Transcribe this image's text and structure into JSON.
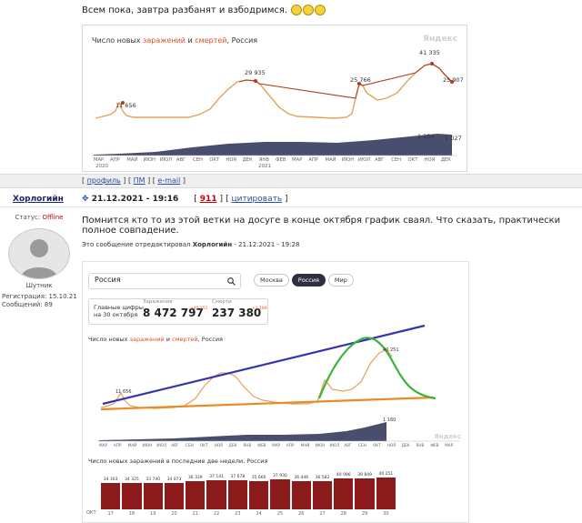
{
  "post1": {
    "text": "Всем пока, завтра разбанят и взбодримся.",
    "chart": {
      "title_prefix": "Число новых ",
      "title_cases": "заражений",
      "title_and": " и ",
      "title_deaths": "смертей",
      "title_suffix": ", Россия",
      "watermark": "Яндекс",
      "labels": [
        "11 656",
        "29 935",
        "25 766",
        "41 335",
        "25 907",
        "1 254",
        "1 027"
      ],
      "months": [
        "МАР",
        "АПР",
        "МАЙ",
        "ИЮН",
        "ИЮЛ",
        "АВГ",
        "СЕН",
        "ОКТ",
        "НОЯ",
        "ДЕК",
        "ЯНВ",
        "ФЕВ",
        "МАР",
        "АПР",
        "МАЙ",
        "ИЮН",
        "ИЮЛ",
        "АВГ",
        "СЕН",
        "ОКТ",
        "НОЯ",
        "ДЕК"
      ],
      "year1": "2020",
      "year2": "2021"
    },
    "links": {
      "profile": "профиль",
      "pm": "ПМ",
      "email": "e-mail"
    }
  },
  "post2": {
    "username": "Хорлогийн",
    "status_label": "Статус:",
    "status_value": "Offline",
    "rank": "Шутник",
    "reg_label": "Регистрация: 15.10.21",
    "msgs_label": "Сообщений: 89",
    "datetime": "21.12.2021 - 19:16",
    "post_number": "911",
    "quote_label": "цитировать",
    "text": "Помнится кто то из этой ветки на досуге в конце октября график сваял. Что сказать, практически полное совпадение.",
    "edited_prefix": "Это сообщение отредактировал",
    "edited_user": "Хорлогийн",
    "edited_suffix": "- 21.12.2021 - 19:28",
    "image": {
      "search_value": "Россия",
      "pills": [
        "Москва",
        "Россия",
        "Мир"
      ],
      "main_figs_label_1": "Главные цифры",
      "main_figs_label_2": "на 30 октября",
      "cases_label": "Заражения",
      "cases_value": "8 472 797",
      "cases_delta": "+40 251",
      "deaths_label": "Смерти",
      "deaths_value": "237 380",
      "deaths_delta": "+1 160",
      "chart_title_prefix": "Число новых ",
      "chart_title_cases": "заражений",
      "chart_title_and": " и ",
      "chart_title_deaths": "смертей",
      "chart_title_suffix": ", Россия",
      "chart_labels": [
        "11 656",
        "40 251",
        "1 160"
      ],
      "months": [
        "МАР",
        "АПР",
        "МАЙ",
        "ИЮН",
        "ИЮЛ",
        "АВГ",
        "СЕН",
        "ОКТ",
        "НОЯ",
        "ДЕК",
        "ЯНВ",
        "ФЕВ",
        "МАР",
        "АПР",
        "МАЙ",
        "ИЮН",
        "ИЮЛ",
        "АВГ",
        "СЕН",
        "ОКТ",
        "НОЯ",
        "ДЕК",
        "ЯНВ",
        "ФЕВ",
        "МАР"
      ],
      "watermark": "Яндекс",
      "bar_title": "Число новых заражений в последние две недели, Россия",
      "bar_values": [
        "34 303",
        "34 325",
        "33 740",
        "34 073",
        "36 339",
        "37 141",
        "37 678",
        "35 660",
        "37 930",
        "36 446",
        "36 582",
        "40 096",
        "39 849",
        "40 251"
      ],
      "bar_month": "ОКТ",
      "bar_days": [
        "17",
        "18",
        "19",
        "20",
        "21",
        "22",
        "23",
        "24",
        "25",
        "26",
        "27",
        "28",
        "29",
        "30"
      ]
    }
  },
  "colors": {
    "accent_red": "#e0501e",
    "link_blue": "#2a4fa3",
    "bar_red": "#8b1a1a",
    "overlay_blue": "#3535b0",
    "overlay_orange": "#e98a25",
    "overlay_green": "#3cb43c"
  }
}
